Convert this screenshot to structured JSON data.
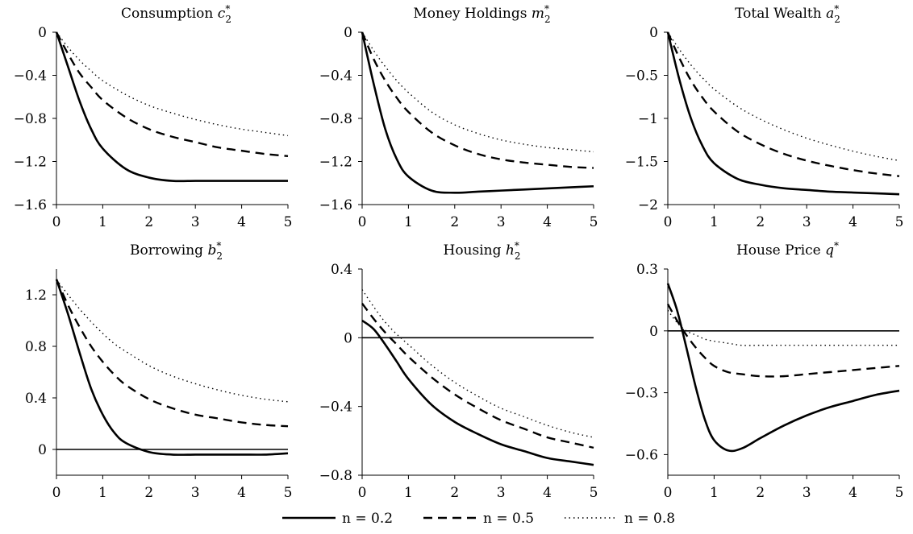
{
  "chart_data": [
    {
      "type": "line",
      "title": "Consumption",
      "title_var": "c",
      "title_sup": "*",
      "title_sub": "2",
      "xlim": [
        0,
        5
      ],
      "ylim": [
        -1.6,
        0
      ],
      "xticks": [
        0,
        1,
        2,
        3,
        4,
        5
      ],
      "xtick_labels": [
        "0",
        "1",
        "2",
        "3",
        "4",
        "5"
      ],
      "yticks": [
        0,
        -0.4,
        -0.8,
        -1.2,
        -1.6
      ],
      "ytick_labels": [
        "0",
        "−0.4",
        "−0.8",
        "−1.2",
        "−1.6"
      ],
      "zero_line": false,
      "x": [
        0,
        0.25,
        0.5,
        0.75,
        1,
        1.5,
        2,
        2.5,
        3,
        3.5,
        4,
        4.5,
        5
      ],
      "series": [
        {
          "name": "n = 0.2",
          "style": "solid",
          "values": [
            0,
            -0.32,
            -0.64,
            -0.9,
            -1.08,
            -1.27,
            -1.35,
            -1.38,
            -1.38,
            -1.38,
            -1.38,
            -1.38,
            -1.38
          ]
        },
        {
          "name": "n = 0.5",
          "style": "dashed",
          "values": [
            0,
            -0.2,
            -0.38,
            -0.51,
            -0.63,
            -0.79,
            -0.9,
            -0.97,
            -1.02,
            -1.07,
            -1.1,
            -1.13,
            -1.15
          ]
        },
        {
          "name": "n = 0.8",
          "style": "dotted",
          "values": [
            0,
            -0.14,
            -0.26,
            -0.36,
            -0.45,
            -0.58,
            -0.68,
            -0.75,
            -0.81,
            -0.86,
            -0.9,
            -0.93,
            -0.96
          ]
        }
      ]
    },
    {
      "type": "line",
      "title": "Money Holdings",
      "title_var": "m",
      "title_sup": "*",
      "title_sub": "2",
      "xlim": [
        0,
        5
      ],
      "ylim": [
        -1.6,
        0
      ],
      "xticks": [
        0,
        1,
        2,
        3,
        4,
        5
      ],
      "xtick_labels": [
        "0",
        "1",
        "2",
        "3",
        "4",
        "5"
      ],
      "yticks": [
        0,
        -0.4,
        -0.8,
        -1.2,
        -1.6
      ],
      "ytick_labels": [
        "0",
        "−0.4",
        "−0.8",
        "−1.2",
        "−1.6"
      ],
      "zero_line": false,
      "x": [
        0,
        0.25,
        0.5,
        0.75,
        1,
        1.5,
        2,
        2.5,
        3,
        3.5,
        4,
        4.5,
        5
      ],
      "series": [
        {
          "name": "n = 0.2",
          "style": "solid",
          "values": [
            0,
            -0.48,
            -0.9,
            -1.18,
            -1.34,
            -1.47,
            -1.49,
            -1.48,
            -1.47,
            -1.46,
            -1.45,
            -1.44,
            -1.43
          ]
        },
        {
          "name": "n = 0.5",
          "style": "dashed",
          "values": [
            0,
            -0.25,
            -0.45,
            -0.61,
            -0.74,
            -0.93,
            -1.05,
            -1.13,
            -1.18,
            -1.21,
            -1.23,
            -1.25,
            -1.26
          ]
        },
        {
          "name": "n = 0.8",
          "style": "dotted",
          "values": [
            0,
            -0.17,
            -0.32,
            -0.45,
            -0.56,
            -0.74,
            -0.86,
            -0.94,
            -1.0,
            -1.04,
            -1.07,
            -1.09,
            -1.11
          ]
        }
      ]
    },
    {
      "type": "line",
      "title": "Total Wealth",
      "title_var": "a",
      "title_sup": "*",
      "title_sub": "2",
      "xlim": [
        0,
        5
      ],
      "ylim": [
        -2,
        0
      ],
      "xticks": [
        0,
        1,
        2,
        3,
        4,
        5
      ],
      "xtick_labels": [
        "0",
        "1",
        "2",
        "3",
        "4",
        "5"
      ],
      "yticks": [
        0,
        -0.5,
        -1,
        -1.5,
        -2
      ],
      "ytick_labels": [
        "0",
        "−0.5",
        "−1",
        "−1.5",
        "−2"
      ],
      "zero_line": false,
      "x": [
        0,
        0.25,
        0.5,
        0.75,
        1,
        1.5,
        2,
        2.5,
        3,
        3.5,
        4,
        4.5,
        5
      ],
      "series": [
        {
          "name": "n = 0.2",
          "style": "solid",
          "values": [
            0,
            -0.55,
            -1.0,
            -1.32,
            -1.52,
            -1.7,
            -1.77,
            -1.81,
            -1.83,
            -1.85,
            -1.86,
            -1.87,
            -1.88
          ]
        },
        {
          "name": "n = 0.5",
          "style": "dashed",
          "values": [
            0,
            -0.3,
            -0.56,
            -0.76,
            -0.92,
            -1.15,
            -1.3,
            -1.41,
            -1.49,
            -1.55,
            -1.6,
            -1.64,
            -1.67
          ]
        },
        {
          "name": "n = 0.8",
          "style": "dotted",
          "values": [
            0,
            -0.2,
            -0.38,
            -0.53,
            -0.66,
            -0.86,
            -1.01,
            -1.13,
            -1.23,
            -1.31,
            -1.38,
            -1.44,
            -1.49
          ]
        }
      ]
    },
    {
      "type": "line",
      "title": "Borrowing",
      "title_var": "b",
      "title_sup": "*",
      "title_sub": "2",
      "xlim": [
        0,
        5
      ],
      "ylim": [
        -0.2,
        1.4
      ],
      "xticks": [
        0,
        1,
        2,
        3,
        4,
        5
      ],
      "xtick_labels": [
        "0",
        "1",
        "2",
        "3",
        "4",
        "5"
      ],
      "yticks": [
        1.2,
        0.8,
        0.4,
        0
      ],
      "ytick_labels": [
        "1.2",
        "0.8",
        "0.4",
        "0"
      ],
      "zero_line": true,
      "x": [
        0,
        0.25,
        0.5,
        0.75,
        1,
        1.25,
        1.5,
        2,
        2.5,
        3,
        3.5,
        4,
        4.5,
        5
      ],
      "series": [
        {
          "name": "n = 0.2",
          "style": "solid",
          "values": [
            1.32,
            1.05,
            0.75,
            0.47,
            0.27,
            0.13,
            0.05,
            -0.02,
            -0.04,
            -0.04,
            -0.04,
            -0.04,
            -0.04,
            -0.03
          ]
        },
        {
          "name": "n = 0.5",
          "style": "dashed",
          "values": [
            1.32,
            1.12,
            0.95,
            0.8,
            0.68,
            0.58,
            0.5,
            0.39,
            0.32,
            0.27,
            0.24,
            0.21,
            0.19,
            0.18
          ]
        },
        {
          "name": "n = 0.8",
          "style": "dotted",
          "values": [
            1.32,
            1.2,
            1.09,
            0.99,
            0.9,
            0.82,
            0.76,
            0.65,
            0.57,
            0.51,
            0.46,
            0.42,
            0.39,
            0.37
          ]
        }
      ]
    },
    {
      "type": "line",
      "title": "Housing",
      "title_var": "h",
      "title_sup": "*",
      "title_sub": "2",
      "xlim": [
        0,
        5
      ],
      "ylim": [
        -0.8,
        0.4
      ],
      "xticks": [
        0,
        1,
        2,
        3,
        4,
        5
      ],
      "xtick_labels": [
        "0",
        "1",
        "2",
        "3",
        "4",
        "5"
      ],
      "yticks": [
        0.4,
        0,
        -0.4,
        -0.8
      ],
      "ytick_labels": [
        "0.4",
        "0",
        "−0.4",
        "−0.8"
      ],
      "zero_line": true,
      "x": [
        0,
        0.25,
        0.5,
        0.75,
        1,
        1.5,
        2,
        2.5,
        3,
        3.5,
        4,
        4.5,
        5
      ],
      "series": [
        {
          "name": "n = 0.2",
          "style": "solid",
          "values": [
            0.1,
            0.05,
            -0.04,
            -0.14,
            -0.24,
            -0.39,
            -0.49,
            -0.56,
            -0.62,
            -0.66,
            -0.7,
            -0.72,
            -0.74
          ]
        },
        {
          "name": "n = 0.5",
          "style": "dashed",
          "values": [
            0.2,
            0.11,
            0.03,
            -0.04,
            -0.11,
            -0.23,
            -0.33,
            -0.41,
            -0.48,
            -0.53,
            -0.58,
            -0.61,
            -0.64
          ]
        },
        {
          "name": "n = 0.8",
          "style": "dotted",
          "values": [
            0.28,
            0.18,
            0.09,
            0.02,
            -0.04,
            -0.16,
            -0.26,
            -0.34,
            -0.41,
            -0.46,
            -0.51,
            -0.55,
            -0.58
          ]
        }
      ]
    },
    {
      "type": "line",
      "title": "House Price",
      "title_var": "q",
      "title_sup": "*",
      "title_sub": "",
      "xlim": [
        0,
        5
      ],
      "ylim": [
        -0.7,
        0.3
      ],
      "xticks": [
        0,
        1,
        2,
        3,
        4,
        5
      ],
      "xtick_labels": [
        "0",
        "1",
        "2",
        "3",
        "4",
        "5"
      ],
      "yticks": [
        0.3,
        0,
        -0.3,
        -0.6
      ],
      "ytick_labels": [
        "0.3",
        "0",
        "−0.3",
        "−0.6"
      ],
      "zero_line": true,
      "x": [
        0,
        0.2,
        0.4,
        0.6,
        0.8,
        1,
        1.3,
        1.6,
        2,
        2.5,
        3,
        3.5,
        4,
        4.5,
        5
      ],
      "series": [
        {
          "name": "n = 0.2",
          "style": "solid",
          "values": [
            0.23,
            0.1,
            -0.08,
            -0.27,
            -0.43,
            -0.53,
            -0.58,
            -0.57,
            -0.52,
            -0.46,
            -0.41,
            -0.37,
            -0.34,
            -0.31,
            -0.29
          ]
        },
        {
          "name": "n = 0.5",
          "style": "dashed",
          "values": [
            0.13,
            0.05,
            -0.02,
            -0.08,
            -0.13,
            -0.17,
            -0.2,
            -0.21,
            -0.22,
            -0.22,
            -0.21,
            -0.2,
            -0.19,
            -0.18,
            -0.17
          ]
        },
        {
          "name": "n = 0.8",
          "style": "dotted",
          "values": [
            0.1,
            0.04,
            0.0,
            -0.02,
            -0.04,
            -0.05,
            -0.06,
            -0.07,
            -0.07,
            -0.07,
            -0.07,
            -0.07,
            -0.07,
            -0.07,
            -0.07
          ]
        }
      ]
    }
  ],
  "legend": {
    "items": [
      {
        "label": "n = 0.2",
        "style": "solid"
      },
      {
        "label": "n = 0.5",
        "style": "dashed"
      },
      {
        "label": "n = 0.8",
        "style": "dotted"
      }
    ]
  },
  "colors": {
    "line": "#000000",
    "background": "#ffffff"
  }
}
